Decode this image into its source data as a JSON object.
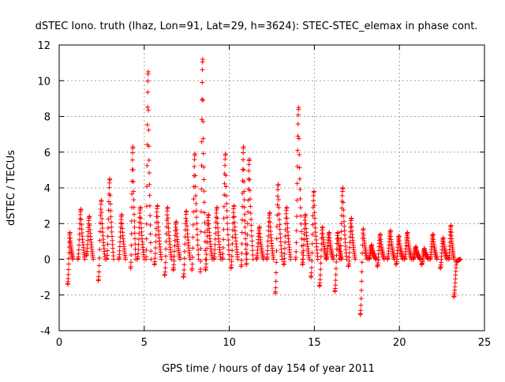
{
  "chart_data": {
    "type": "scatter",
    "title": "dSTEC Iono. truth (lhaz, Lon=91, Lat=29, h=3624): STEC-STEC_elemax in phase cont.",
    "xlabel": "GPS time / hours of day 154 of year 2011",
    "ylabel": "dSTEC  / TECUs",
    "xlim": [
      0,
      25
    ],
    "ylim": [
      -4,
      12
    ],
    "x_ticks": [
      0,
      5,
      10,
      15,
      20,
      25
    ],
    "y_ticks": [
      -4,
      -2,
      0,
      2,
      4,
      6,
      8,
      10,
      12
    ],
    "x_tick_labels": [
      "0",
      "5",
      "10",
      "15",
      "20",
      "25"
    ],
    "y_tick_labels": [
      "-4",
      "-2",
      "0",
      "2",
      "4",
      "6",
      "8",
      "10",
      "12"
    ],
    "grid": true,
    "marker": "+",
    "color": "#ff0000",
    "series": [
      {
        "tracks": [
          [
            0.5,
            0.8,
            -1.4,
            1.5
          ],
          [
            1.1,
            1.5,
            0.0,
            2.8
          ],
          [
            1.6,
            2.0,
            0.2,
            2.4
          ],
          [
            2.3,
            2.7,
            -1.2,
            3.3
          ],
          [
            2.8,
            3.2,
            0.0,
            4.5
          ],
          [
            3.5,
            3.9,
            0.0,
            2.5
          ],
          [
            4.2,
            4.5,
            -0.5,
            6.3
          ],
          [
            4.6,
            5.0,
            0.0,
            2.9
          ],
          [
            5.1,
            5.4,
            0.0,
            10.5
          ],
          [
            5.6,
            6.0,
            -0.3,
            3.0
          ],
          [
            6.2,
            6.6,
            -0.9,
            2.9
          ],
          [
            6.7,
            7.1,
            -0.6,
            2.1
          ],
          [
            7.3,
            7.7,
            -1.0,
            2.7
          ],
          [
            7.8,
            8.2,
            -0.6,
            5.9
          ],
          [
            8.3,
            8.6,
            -0.7,
            11.2
          ],
          [
            8.6,
            9.0,
            -0.6,
            2.5
          ],
          [
            9.1,
            9.5,
            0.0,
            2.9
          ],
          [
            9.6,
            10.0,
            0.0,
            5.9
          ],
          [
            10.1,
            10.5,
            -0.5,
            3.0
          ],
          [
            10.7,
            11.0,
            -0.4,
            6.3
          ],
          [
            11.0,
            11.4,
            -0.3,
            5.6
          ],
          [
            11.6,
            12.0,
            0.0,
            1.8
          ],
          [
            12.2,
            12.6,
            0.0,
            2.6
          ],
          [
            12.7,
            13.1,
            -1.9,
            4.2
          ],
          [
            13.2,
            13.6,
            -0.3,
            2.9
          ],
          [
            13.9,
            14.3,
            0.0,
            8.5
          ],
          [
            14.3,
            14.7,
            -0.3,
            2.5
          ],
          [
            14.8,
            15.2,
            -1.0,
            3.8
          ],
          [
            15.3,
            15.7,
            -1.5,
            1.8
          ],
          [
            15.7,
            16.1,
            0.0,
            1.5
          ],
          [
            16.2,
            16.6,
            -1.8,
            1.5
          ],
          [
            16.5,
            16.9,
            0.0,
            4.0
          ],
          [
            17.0,
            17.4,
            -0.4,
            2.3
          ],
          [
            17.7,
            18.1,
            -3.1,
            1.7
          ],
          [
            18.2,
            18.6,
            0.0,
            0.8
          ],
          [
            18.7,
            19.1,
            -0.4,
            1.4
          ],
          [
            19.3,
            19.7,
            0.0,
            1.6
          ],
          [
            19.8,
            20.2,
            -0.3,
            1.3
          ],
          [
            20.3,
            20.7,
            0.0,
            1.5
          ],
          [
            20.8,
            21.2,
            0.0,
            0.7
          ],
          [
            21.3,
            21.7,
            -0.3,
            0.6
          ],
          [
            21.8,
            22.2,
            0.0,
            1.4
          ],
          [
            22.4,
            22.8,
            -0.5,
            1.2
          ],
          [
            22.9,
            23.2,
            0.0,
            1.9
          ],
          [
            23.2,
            23.6,
            -2.1,
            -0.1
          ]
        ]
      }
    ]
  }
}
